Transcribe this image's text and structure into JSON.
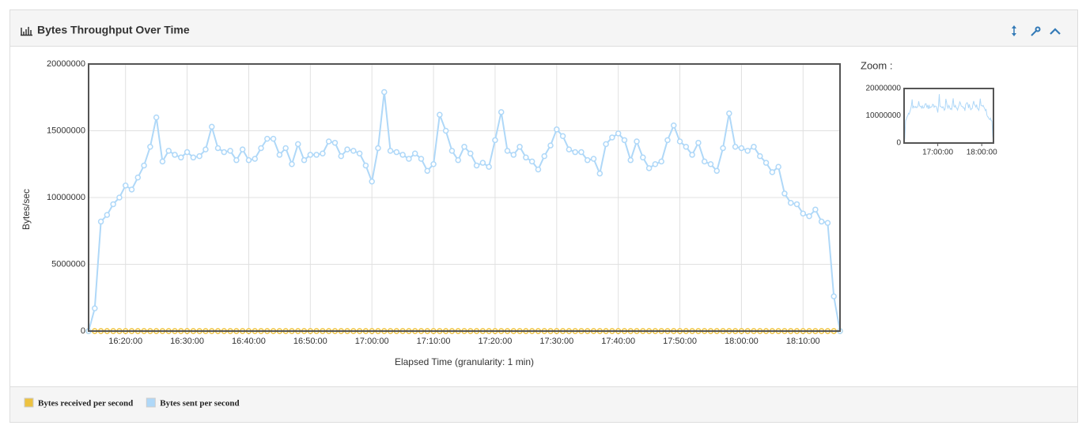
{
  "header": {
    "title": "Bytes Throughput Over Time"
  },
  "chart_data": {
    "type": "line",
    "y_label": "Bytes/sec",
    "x_label": "Elapsed Time (granularity: 1 min)",
    "zoom_label": "Zoom :",
    "x": [
      "16:14:00",
      "16:15:00",
      "16:16:00",
      "16:17:00",
      "16:18:00",
      "16:19:00",
      "16:20:00",
      "16:21:00",
      "16:22:00",
      "16:23:00",
      "16:24:00",
      "16:25:00",
      "16:26:00",
      "16:27:00",
      "16:28:00",
      "16:29:00",
      "16:30:00",
      "16:31:00",
      "16:32:00",
      "16:33:00",
      "16:34:00",
      "16:35:00",
      "16:36:00",
      "16:37:00",
      "16:38:00",
      "16:39:00",
      "16:40:00",
      "16:41:00",
      "16:42:00",
      "16:43:00",
      "16:44:00",
      "16:45:00",
      "16:46:00",
      "16:47:00",
      "16:48:00",
      "16:49:00",
      "16:50:00",
      "16:51:00",
      "16:52:00",
      "16:53:00",
      "16:54:00",
      "16:55:00",
      "16:56:00",
      "16:57:00",
      "16:58:00",
      "16:59:00",
      "17:00:00",
      "17:01:00",
      "17:02:00",
      "17:03:00",
      "17:04:00",
      "17:05:00",
      "17:06:00",
      "17:07:00",
      "17:08:00",
      "17:09:00",
      "17:10:00",
      "17:11:00",
      "17:12:00",
      "17:13:00",
      "17:14:00",
      "17:15:00",
      "17:16:00",
      "17:17:00",
      "17:18:00",
      "17:19:00",
      "17:20:00",
      "17:21:00",
      "17:22:00",
      "17:23:00",
      "17:24:00",
      "17:25:00",
      "17:26:00",
      "17:27:00",
      "17:28:00",
      "17:29:00",
      "17:30:00",
      "17:31:00",
      "17:32:00",
      "17:33:00",
      "17:34:00",
      "17:35:00",
      "17:36:00",
      "17:37:00",
      "17:38:00",
      "17:39:00",
      "17:40:00",
      "17:41:00",
      "17:42:00",
      "17:43:00",
      "17:44:00",
      "17:45:00",
      "17:46:00",
      "17:47:00",
      "17:48:00",
      "17:49:00",
      "17:50:00",
      "17:51:00",
      "17:52:00",
      "17:53:00",
      "17:54:00",
      "17:55:00",
      "17:56:00",
      "17:57:00",
      "17:58:00",
      "17:59:00",
      "18:00:00",
      "18:01:00",
      "18:02:00",
      "18:03:00",
      "18:04:00",
      "18:05:00",
      "18:06:00",
      "18:07:00",
      "18:08:00",
      "18:09:00",
      "18:10:00",
      "18:11:00",
      "18:12:00",
      "18:13:00",
      "18:14:00",
      "18:15:00",
      "18:16:00"
    ],
    "series": [
      {
        "name": "Bytes received per second",
        "color": "#edc240",
        "values": [
          0,
          0,
          0,
          0,
          0,
          0,
          0,
          0,
          0,
          0,
          0,
          0,
          0,
          0,
          0,
          0,
          0,
          0,
          0,
          0,
          0,
          0,
          0,
          0,
          0,
          0,
          0,
          0,
          0,
          0,
          0,
          0,
          0,
          0,
          0,
          0,
          0,
          0,
          0,
          0,
          0,
          0,
          0,
          0,
          0,
          0,
          0,
          0,
          0,
          0,
          0,
          0,
          0,
          0,
          0,
          0,
          0,
          0,
          0,
          0,
          0,
          0,
          0,
          0,
          0,
          0,
          0,
          0,
          0,
          0,
          0,
          0,
          0,
          0,
          0,
          0,
          0,
          0,
          0,
          0,
          0,
          0,
          0,
          0,
          0,
          0,
          0,
          0,
          0,
          0,
          0,
          0,
          0,
          0,
          0,
          0,
          0,
          0,
          0,
          0,
          0,
          0,
          0,
          0,
          0,
          0,
          0,
          0,
          0,
          0,
          0,
          0,
          0,
          0,
          0,
          0,
          0,
          0,
          0,
          0,
          0,
          0,
          0
        ]
      },
      {
        "name": "Bytes sent per second",
        "color": "#afd8f8",
        "values": [
          0,
          1700000,
          8200000,
          8700000,
          9500000,
          10000000,
          10900000,
          10600000,
          11500000,
          12400000,
          13800000,
          16000000,
          12700000,
          13500000,
          13200000,
          13000000,
          13400000,
          13000000,
          13100000,
          13600000,
          15300000,
          13700000,
          13400000,
          13500000,
          12800000,
          13600000,
          12800000,
          12900000,
          13700000,
          14400000,
          14400000,
          13200000,
          13700000,
          12500000,
          14000000,
          12800000,
          13200000,
          13200000,
          13300000,
          14200000,
          14100000,
          13100000,
          13600000,
          13500000,
          13300000,
          12400000,
          11200000,
          13700000,
          17900000,
          13500000,
          13400000,
          13200000,
          12900000,
          13300000,
          12900000,
          12000000,
          12500000,
          16200000,
          15000000,
          13500000,
          12800000,
          13800000,
          13300000,
          12400000,
          12600000,
          12300000,
          14300000,
          16400000,
          13500000,
          13200000,
          13800000,
          13000000,
          12700000,
          12100000,
          13100000,
          13900000,
          15100000,
          14600000,
          13600000,
          13400000,
          13400000,
          12800000,
          12900000,
          11800000,
          14000000,
          14500000,
          14800000,
          14300000,
          12800000,
          14200000,
          13000000,
          12200000,
          12500000,
          12700000,
          14300000,
          15400000,
          14200000,
          13800000,
          13200000,
          14100000,
          12700000,
          12500000,
          12000000,
          13700000,
          16300000,
          13800000,
          13700000,
          13500000,
          13800000,
          13100000,
          12600000,
          11900000,
          12300000,
          10300000,
          9600000,
          9500000,
          8800000,
          8600000,
          9100000,
          8200000,
          8100000,
          2600000,
          0
        ]
      }
    ],
    "xlim": [
      "16:14:00",
      "18:16:00"
    ],
    "xticks": [
      "16:20:00",
      "16:30:00",
      "16:40:00",
      "16:50:00",
      "17:00:00",
      "17:10:00",
      "17:20:00",
      "17:30:00",
      "17:40:00",
      "17:50:00",
      "18:00:00",
      "18:10:00"
    ],
    "ylim": [
      0,
      20000000
    ],
    "yticks": [
      0,
      5000000,
      10000000,
      15000000,
      20000000
    ],
    "grid": true,
    "zoom": {
      "yticks": [
        0,
        10000000,
        20000000
      ],
      "xticks": [
        "17:00:00",
        "18:00:00"
      ]
    }
  }
}
